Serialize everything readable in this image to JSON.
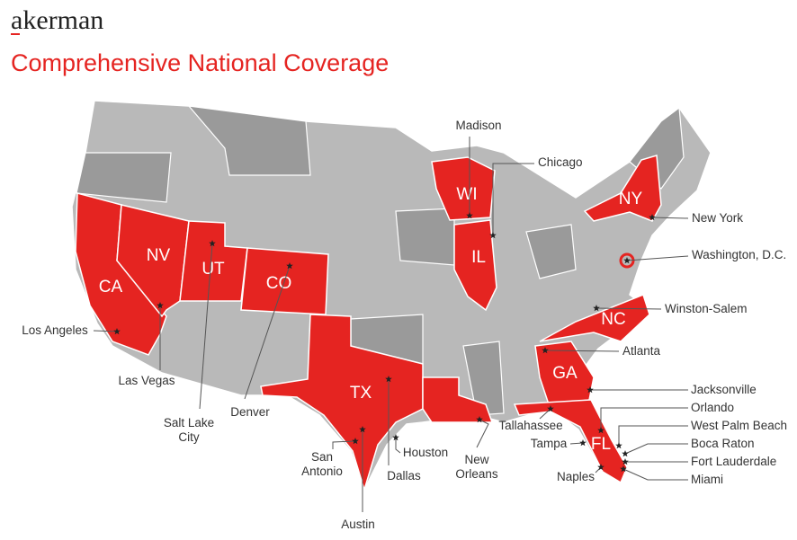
{
  "header": {
    "logo": "akerman",
    "title": "Comprehensive National Coverage"
  },
  "states": [
    "CA",
    "NV",
    "UT",
    "CO",
    "TX",
    "WI",
    "IL",
    "NY",
    "NC",
    "GA",
    "FL"
  ],
  "cities": [
    {
      "lines": [
        "Madison"
      ]
    },
    {
      "lines": [
        "Chicago"
      ]
    },
    {
      "lines": [
        "New York"
      ]
    },
    {
      "lines": [
        "Washington, D.C."
      ]
    },
    {
      "lines": [
        "Winston-Salem"
      ]
    },
    {
      "lines": [
        "Atlanta"
      ]
    },
    {
      "lines": [
        "Jacksonville"
      ]
    },
    {
      "lines": [
        "Orlando"
      ]
    },
    {
      "lines": [
        "West Palm Beach"
      ]
    },
    {
      "lines": [
        "Boca Raton"
      ]
    },
    {
      "lines": [
        "Fort Lauderdale"
      ]
    },
    {
      "lines": [
        "Miami"
      ]
    },
    {
      "lines": [
        "Naples"
      ]
    },
    {
      "lines": [
        "Tampa"
      ]
    },
    {
      "lines": [
        "Tallahassee"
      ]
    },
    {
      "lines": [
        "New",
        "Orleans"
      ]
    },
    {
      "lines": [
        "Houston"
      ]
    },
    {
      "lines": [
        "Dallas"
      ]
    },
    {
      "lines": [
        "Austin"
      ]
    },
    {
      "lines": [
        "San",
        "Antonio"
      ]
    },
    {
      "lines": [
        "Denver"
      ]
    },
    {
      "lines": [
        "Salt Lake",
        "City"
      ]
    },
    {
      "lines": [
        "Las Vegas"
      ]
    },
    {
      "lines": [
        "Los Angeles"
      ]
    }
  ]
}
